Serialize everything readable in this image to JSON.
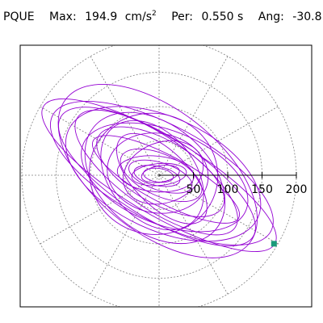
{
  "header": {
    "station": "PQUE",
    "max_label": "Max:",
    "max_value": "194.9",
    "max_unit_base": "cm/s",
    "max_unit_exp": "2",
    "per_label": "Per:",
    "per_value": "0.550 s",
    "ang_label": "Ang:",
    "ang_value": "-30.8"
  },
  "chart_data": {
    "type": "scatter",
    "description_of_axes": "polar",
    "title": "",
    "radial_ticks": [
      50,
      100,
      150,
      200
    ],
    "radial_tick_labels": [
      "50",
      "100",
      "150",
      "200"
    ],
    "rings": [
      50,
      100,
      150,
      200
    ],
    "angular_spokes_deg": [
      0,
      30,
      60,
      90,
      120,
      150,
      180,
      210,
      240,
      270,
      300,
      330
    ],
    "radial_axis_angle_deg": 0,
    "grid": true,
    "max_amplitude": 194.9,
    "max_direction_deg": -30.8,
    "ellipses": [
      {
        "a": 196,
        "b": 56,
        "angle": -30.8,
        "cx": 0,
        "cy": 0
      },
      {
        "a": 180,
        "b": 70,
        "angle": -28,
        "cx": 4,
        "cy": 3
      },
      {
        "a": 165,
        "b": 60,
        "angle": -32,
        "cx": -3,
        "cy": -2
      },
      {
        "a": 152,
        "b": 82,
        "angle": -25,
        "cx": 6,
        "cy": 2
      },
      {
        "a": 140,
        "b": 52,
        "angle": -35,
        "cx": -4,
        "cy": 4
      },
      {
        "a": 128,
        "b": 68,
        "angle": -22,
        "cx": 8,
        "cy": -3
      },
      {
        "a": 116,
        "b": 78,
        "angle": -40,
        "cx": -6,
        "cy": -4
      },
      {
        "a": 104,
        "b": 46,
        "angle": -30,
        "cx": 2,
        "cy": 5
      },
      {
        "a": 94,
        "b": 88,
        "angle": -15,
        "cx": -8,
        "cy": 2
      },
      {
        "a": 84,
        "b": 40,
        "angle": -45,
        "cx": 4,
        "cy": -5
      },
      {
        "a": 74,
        "b": 58,
        "angle": -10,
        "cx": -2,
        "cy": 3
      },
      {
        "a": 64,
        "b": 30,
        "angle": -25,
        "cx": 3,
        "cy": 0
      },
      {
        "a": 56,
        "b": 26,
        "angle": -5,
        "cx": -5,
        "cy": 2
      },
      {
        "a": 48,
        "b": 20,
        "angle": -18,
        "cx": 2,
        "cy": -2
      },
      {
        "a": 40,
        "b": 16,
        "angle": 5,
        "cx": 0,
        "cy": 1
      },
      {
        "a": 34,
        "b": 14,
        "angle": -12,
        "cx": -3,
        "cy": -1
      },
      {
        "a": 28,
        "b": 12,
        "angle": 10,
        "cx": 2,
        "cy": 2
      },
      {
        "a": 22,
        "b": 10,
        "angle": -8,
        "cx": -1,
        "cy": 0
      },
      {
        "a": 170,
        "b": 90,
        "angle": -38,
        "cx": -2,
        "cy": 6
      },
      {
        "a": 120,
        "b": 34,
        "angle": -28,
        "cx": 10,
        "cy": -6
      },
      {
        "a": 90,
        "b": 62,
        "angle": -50,
        "cx": -10,
        "cy": 0
      },
      {
        "a": 60,
        "b": 44,
        "angle": 20,
        "cx": 6,
        "cy": 4
      }
    ],
    "end_marker": {
      "r": 194.9,
      "angle_deg": -30.8
    },
    "colors": {
      "trace": "#9400d3",
      "marker": "#1a9a7a",
      "grid": "#808080",
      "axis": "#000000",
      "frame": "#000000"
    }
  }
}
